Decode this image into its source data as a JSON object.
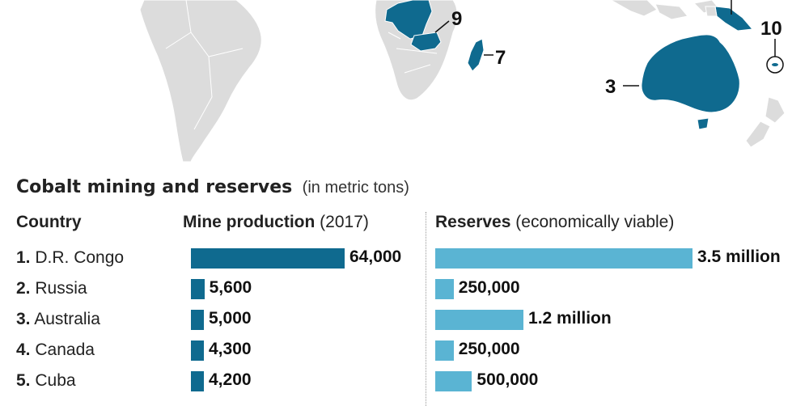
{
  "colors": {
    "land": "#dcdcdc",
    "highlight": "#0f6a8f",
    "production_bar": "#0f6a8f",
    "reserves_bar": "#5ab4d3"
  },
  "map": {
    "rank_labels": [
      "9",
      "7",
      "3",
      "10"
    ]
  },
  "title": "Cobalt mining and reserves",
  "subtitle": "(in metric tons)",
  "headers": {
    "country": "Country",
    "production_bold": "Mine production",
    "production_note": "(2017)",
    "reserves_bold": "Reserves",
    "reserves_note": "(economically viable)"
  },
  "chart_data": {
    "type": "bar",
    "categories": [
      "D.R. Congo",
      "Russia",
      "Australia",
      "Canada",
      "Cuba"
    ],
    "ranks": [
      "1.",
      "2.",
      "3.",
      "4.",
      "5."
    ],
    "series": [
      {
        "name": "Mine production",
        "values": [
          64000,
          5600,
          5000,
          4300,
          4200
        ],
        "labels": [
          "64,000",
          "5,600",
          "5,000",
          "4,300",
          "4,200"
        ]
      },
      {
        "name": "Reserves",
        "values": [
          3500000,
          250000,
          1200000,
          250000,
          500000
        ],
        "labels": [
          "3.5 million",
          "250,000",
          "1.2 million",
          "250,000",
          "500,000"
        ]
      }
    ]
  }
}
